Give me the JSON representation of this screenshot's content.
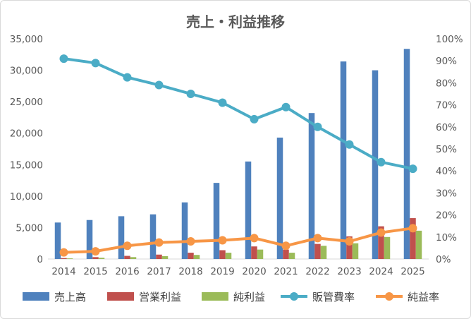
{
  "chart_data": {
    "type": "bar+line",
    "title": "売上・利益推移",
    "categories": [
      "2014",
      "2015",
      "2016",
      "2017",
      "2018",
      "2019",
      "2020",
      "2021",
      "2022",
      "2023",
      "2024",
      "2025"
    ],
    "bar_series": [
      {
        "name": "売上高",
        "color": "#4f81bd",
        "values": [
          5800,
          6200,
          6800,
          7100,
          9000,
          12100,
          15500,
          19300,
          23200,
          31400,
          30000,
          33400
        ]
      },
      {
        "name": "営業利益",
        "color": "#c0504d",
        "values": [
          150,
          300,
          500,
          700,
          1000,
          1400,
          2000,
          1500,
          2400,
          3600,
          5200,
          6500
        ]
      },
      {
        "name": "純利益",
        "color": "#9bbb59",
        "values": [
          100,
          200,
          300,
          450,
          650,
          1000,
          1500,
          1000,
          2100,
          2500,
          3500,
          4500
        ]
      }
    ],
    "line_series": [
      {
        "name": "販管費率",
        "color": "#4bacc6",
        "values": [
          91,
          89,
          82.5,
          79,
          75,
          71,
          63.5,
          69,
          60,
          52,
          44,
          41
        ]
      },
      {
        "name": "純益率",
        "color": "#f79646",
        "values": [
          3,
          3.5,
          6,
          7.5,
          8,
          8.5,
          9.5,
          6,
          9.5,
          8,
          12,
          14
        ]
      }
    ],
    "y_left": {
      "min": 0,
      "max": 35000,
      "step": 5000,
      "ticks": [
        "0",
        "5,000",
        "10,000",
        "15,000",
        "20,000",
        "25,000",
        "30,000",
        "35,000"
      ]
    },
    "y_right": {
      "min": 0,
      "max": 100,
      "step": 10,
      "ticks": [
        "0%",
        "10%",
        "20%",
        "30%",
        "40%",
        "50%",
        "60%",
        "70%",
        "80%",
        "90%",
        "100%"
      ]
    },
    "legend": {
      "position": "bottom",
      "items": [
        {
          "label": "売上高",
          "kind": "bar",
          "color": "#4f81bd"
        },
        {
          "label": "営業利益",
          "kind": "bar",
          "color": "#c0504d"
        },
        {
          "label": "純利益",
          "kind": "bar",
          "color": "#9bbb59"
        },
        {
          "label": "販管費率",
          "kind": "line",
          "color": "#4bacc6"
        },
        {
          "label": "純益率",
          "kind": "line",
          "color": "#f79646"
        }
      ]
    }
  }
}
